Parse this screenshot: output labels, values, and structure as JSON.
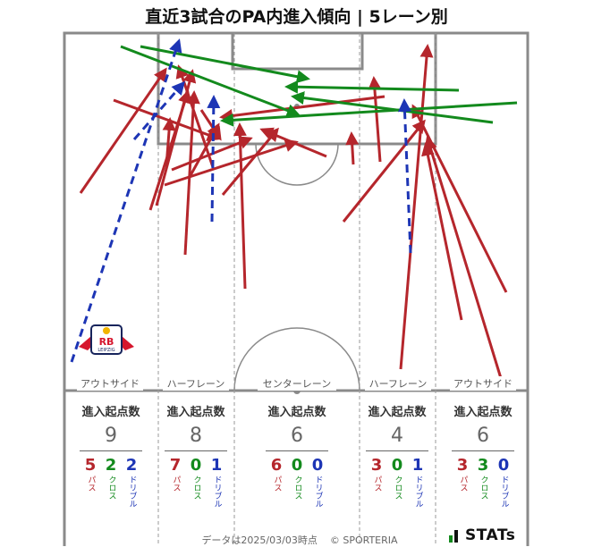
{
  "title": "直近3試合のPA内進入傾向 | 5レーン別",
  "lanes": [
    {
      "label": "アウトサイド",
      "heading": "進入起点数",
      "total": "9",
      "pass": "5",
      "cross": "2",
      "dribble": "2"
    },
    {
      "label": "ハーフレーン",
      "heading": "進入起点数",
      "total": "8",
      "pass": "7",
      "cross": "0",
      "dribble": "1"
    },
    {
      "label": "センターレーン",
      "heading": "進入起点数",
      "total": "6",
      "pass": "6",
      "cross": "0",
      "dribble": "0"
    },
    {
      "label": "ハーフレーン",
      "heading": "進入起点数",
      "total": "4",
      "pass": "3",
      "cross": "0",
      "dribble": "1"
    },
    {
      "label": "アウトサイド",
      "heading": "進入起点数",
      "total": "6",
      "pass": "3",
      "cross": "3",
      "dribble": "0"
    }
  ],
  "legend": {
    "pass": "パス",
    "cross": "クロス",
    "dribble": "ドリブル"
  },
  "colors": {
    "pass": "#b5262c",
    "cross": "#138a1d",
    "dribble": "#1d35b5",
    "pitch_line": "#888888"
  },
  "footer": {
    "date_text": "データは2025/03/03時点",
    "copyright": "© SPORTERIA",
    "brand": "STATs"
  },
  "club_badge": {
    "text": "RB",
    "subtext": "LEIPZIG"
  }
}
